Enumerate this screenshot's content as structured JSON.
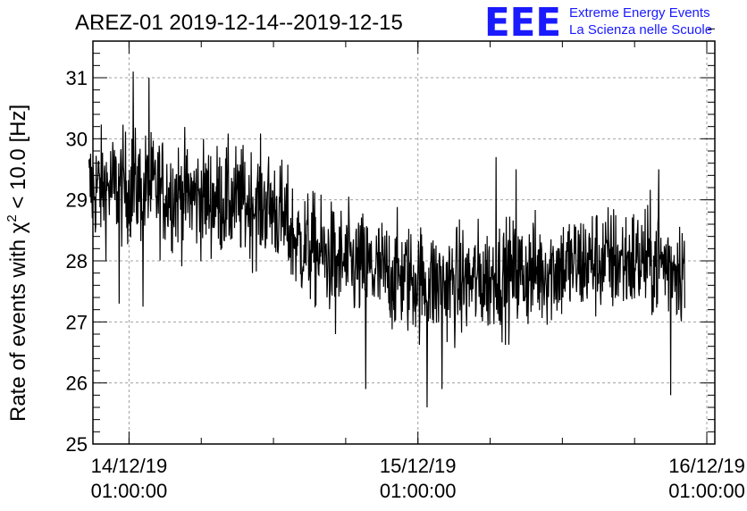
{
  "logo": {
    "mark": "EEE",
    "line1": "Extreme Energy Events",
    "line2": "La Scienza nelle Scuole"
  },
  "colors": {
    "logo": "#1a1aff",
    "series": "#000000",
    "grid": "#a0a0a0"
  },
  "chart_data": {
    "type": "line",
    "title": "AREZ-01 2019-12-14--2019-12-15",
    "ylabel_prefix": "Rate of events with χ",
    "ylabel_sup": "2",
    "ylabel_suffix": " < 10.0 [Hz]",
    "xlabel": "",
    "ylim": [
      25,
      31.6
    ],
    "xlim": [
      "2019-12-13 22:00:00",
      "2019-12-16 01:40:00"
    ],
    "grid": true,
    "y_ticks": [
      25,
      26,
      27,
      28,
      29,
      30,
      31
    ],
    "x_ticks": [
      {
        "x": "2019-12-14 01:00:00",
        "date": "14/12/19",
        "time": "01:00:00"
      },
      {
        "x": "2019-12-15 01:00:00",
        "date": "15/12/19",
        "time": "01:00:00"
      },
      {
        "x": "2019-12-16 01:00:00",
        "date": "16/12/19",
        "time": "01:00:00"
      }
    ],
    "series": [
      {
        "x_start": "2019-12-13 21:40:00",
        "x_end": "2019-12-15 23:10:00",
        "trend": [
          {
            "x": "2019-12-13 21:40:00",
            "y": 29.2
          },
          {
            "x": "2019-12-14 02:00:00",
            "y": 29.2
          },
          {
            "x": "2019-12-14 08:00:00",
            "y": 29.0
          },
          {
            "x": "2019-12-14 13:00:00",
            "y": 28.9
          },
          {
            "x": "2019-12-14 15:00:00",
            "y": 28.3
          },
          {
            "x": "2019-12-14 18:00:00",
            "y": 28.0
          },
          {
            "x": "2019-12-14 22:00:00",
            "y": 27.8
          },
          {
            "x": "2019-12-15 03:00:00",
            "y": 27.6
          },
          {
            "x": "2019-12-15 10:00:00",
            "y": 27.8
          },
          {
            "x": "2019-12-15 16:00:00",
            "y": 28.0
          },
          {
            "x": "2019-12-15 20:00:00",
            "y": 28.0
          },
          {
            "x": "2019-12-15 23:10:00",
            "y": 27.9
          }
        ],
        "noise_amplitude": 0.45,
        "samples": 1400,
        "spikes": [
          {
            "x": "2019-12-14 01:20:00",
            "y": 31.1
          },
          {
            "x": "2019-12-14 02:40:00",
            "y": 31.0
          },
          {
            "x": "2019-12-14 00:10:00",
            "y": 27.3
          },
          {
            "x": "2019-12-14 02:10:00",
            "y": 27.25
          },
          {
            "x": "2019-12-14 18:10:00",
            "y": 26.8
          },
          {
            "x": "2019-12-14 20:40:00",
            "y": 25.9
          },
          {
            "x": "2019-12-15 01:45:00",
            "y": 25.6
          },
          {
            "x": "2019-12-15 03:00:00",
            "y": 25.9
          },
          {
            "x": "2019-12-15 07:30:00",
            "y": 29.7
          },
          {
            "x": "2019-12-15 09:10:00",
            "y": 29.5
          },
          {
            "x": "2019-12-15 22:00:00",
            "y": 25.8
          },
          {
            "x": "2019-12-15 21:00:00",
            "y": 29.5
          }
        ]
      }
    ]
  }
}
